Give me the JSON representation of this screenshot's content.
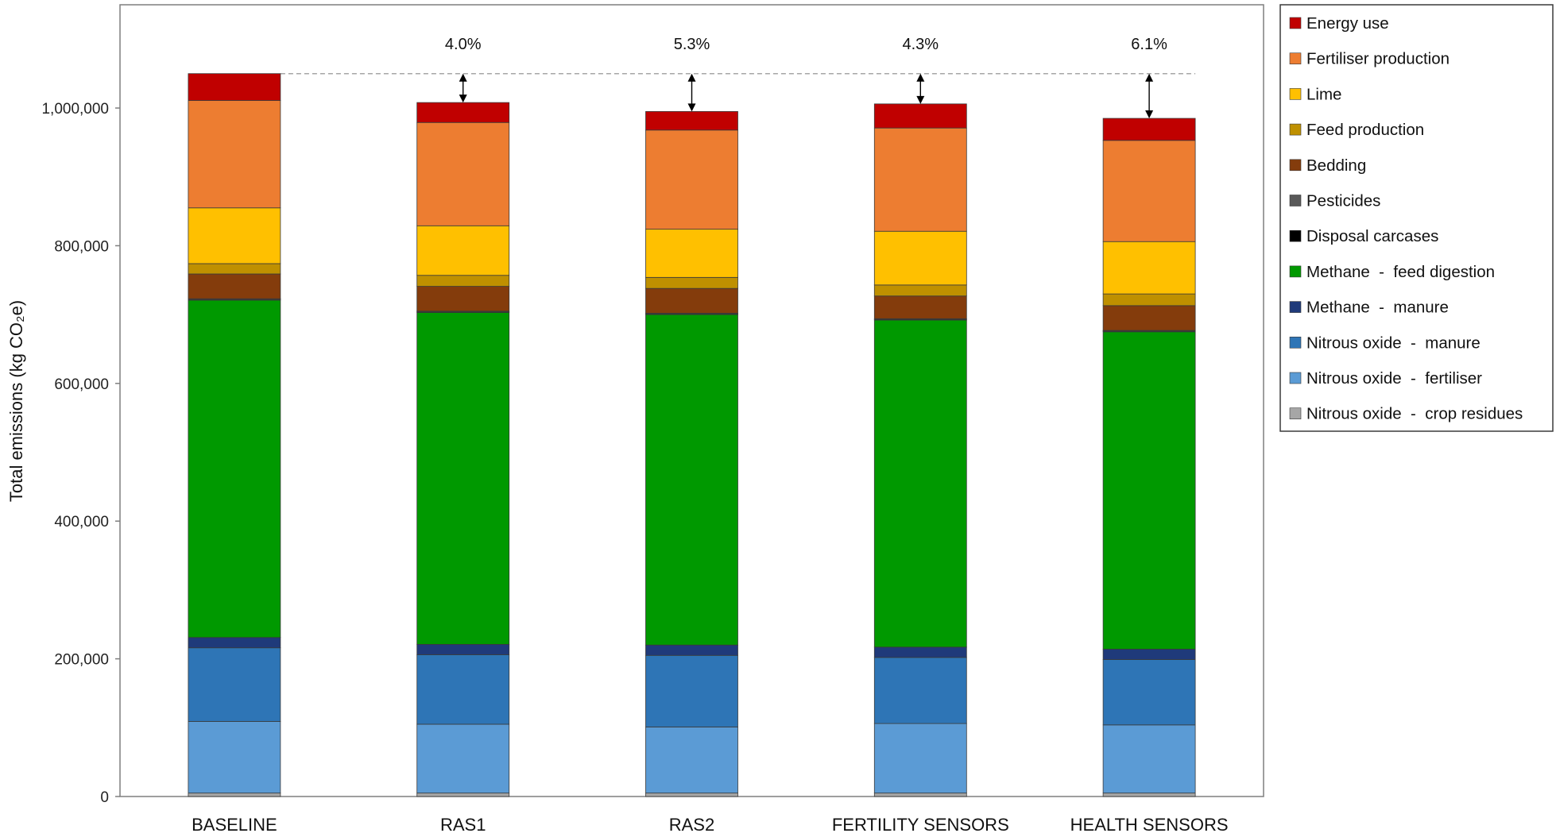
{
  "chart_data": {
    "type": "bar",
    "stacked": true,
    "title": "",
    "xlabel": "",
    "ylabel": "Total emissions (kg CO₂e)",
    "ylim": [
      0,
      1150000
    ],
    "yticks": [
      0,
      200000,
      400000,
      600000,
      800000,
      1000000
    ],
    "ytick_labels": [
      "0",
      "200,000",
      "400,000",
      "600,000",
      "800,000",
      "1,000,000"
    ],
    "categories": [
      "BASELINE",
      "RAS1",
      "RAS2",
      "FERTILITY SENSORS",
      "HEALTH SENSORS"
    ],
    "reduction_labels": [
      "",
      "4.0%",
      "5.3%",
      "4.3%",
      "6.1%"
    ],
    "baseline_reference": 1050000,
    "legend_position": "right",
    "series": [
      {
        "name": "Nitrous oxide  -  crop residues",
        "color": "#a6a6a6",
        "values": [
          5000,
          5000,
          5000,
          5000,
          5000
        ]
      },
      {
        "name": "Nitrous oxide  -  fertiliser",
        "color": "#5b9bd5",
        "values": [
          104000,
          100000,
          96000,
          101000,
          99000
        ]
      },
      {
        "name": "Nitrous oxide  -  manure",
        "color": "#2e75b6",
        "values": [
          107000,
          101000,
          104000,
          96000,
          95000
        ]
      },
      {
        "name": "Methane  -  manure",
        "color": "#1f3a7a",
        "values": [
          15000,
          15000,
          15000,
          15000,
          15000
        ]
      },
      {
        "name": "Methane  -  feed digestion",
        "color": "#009900",
        "values": [
          490000,
          482000,
          480000,
          475000,
          461000
        ]
      },
      {
        "name": "Disposal carcases",
        "color": "#000000",
        "values": [
          1000,
          1000,
          1000,
          1000,
          1000
        ]
      },
      {
        "name": "Pesticides",
        "color": "#595959",
        "values": [
          1000,
          1000,
          1000,
          1000,
          1000
        ]
      },
      {
        "name": "Bedding",
        "color": "#843c0c",
        "values": [
          36000,
          36000,
          36000,
          33000,
          36000
        ]
      },
      {
        "name": "Feed production",
        "color": "#bf9000",
        "values": [
          15000,
          16000,
          16000,
          16000,
          17000
        ]
      },
      {
        "name": "Lime",
        "color": "#ffc000",
        "values": [
          81000,
          72000,
          70000,
          78000,
          76000
        ]
      },
      {
        "name": "Fertiliser production",
        "color": "#ed7d31",
        "values": [
          156000,
          150000,
          144000,
          150000,
          147000
        ]
      },
      {
        "name": "Energy use",
        "color": "#c00000",
        "values": [
          39000,
          29000,
          27000,
          35000,
          32000
        ]
      }
    ],
    "legend_order": [
      "Energy use",
      "Fertiliser production",
      "Lime",
      "Feed production",
      "Bedding",
      "Pesticides",
      "Disposal carcases",
      "Methane  -  feed digestion",
      "Methane  -  manure",
      "Nitrous oxide  -  manure",
      "Nitrous oxide  -  fertiliser",
      "Nitrous oxide  -  crop residues"
    ]
  }
}
